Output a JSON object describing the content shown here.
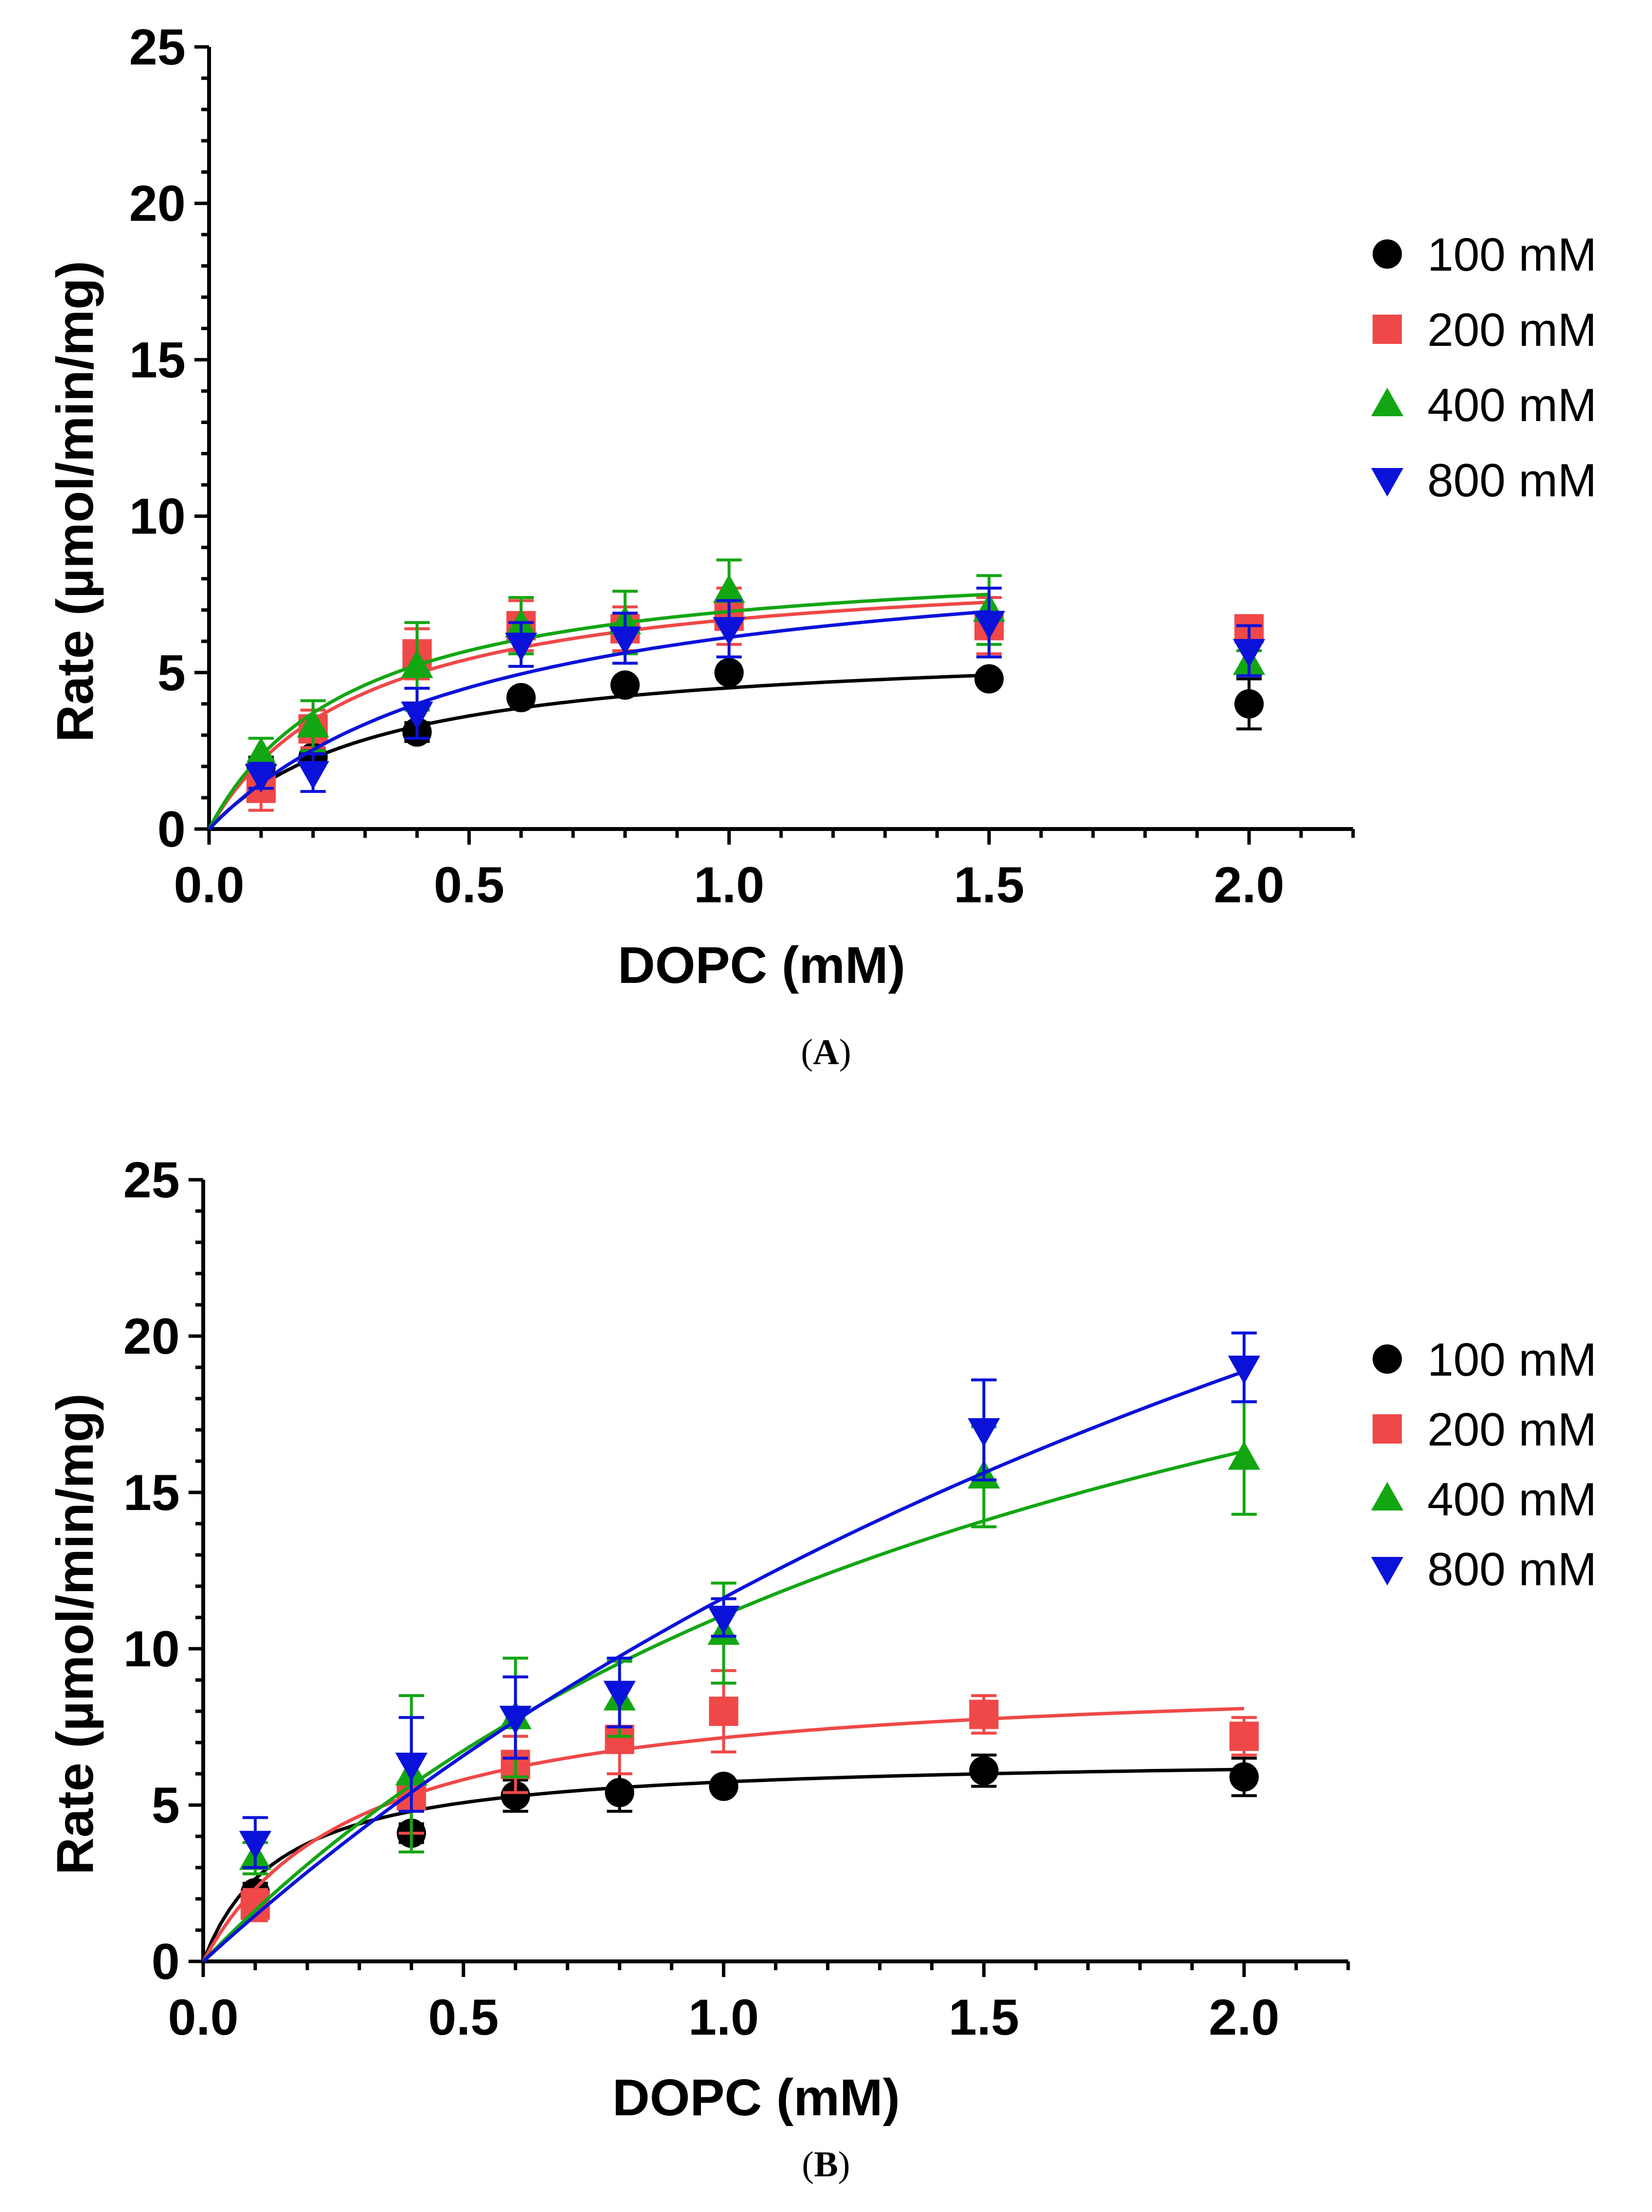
{
  "chart_data": [
    {
      "type": "scatter",
      "panel_label": "A",
      "xlabel": "DOPC (mM)",
      "ylabel": "Rate (µmol/min/mg)",
      "xlim": [
        0,
        2.2
      ],
      "ylim": [
        0,
        25
      ],
      "xticks": [
        "0.0",
        "0.5",
        "1.0",
        "1.5",
        "2.0"
      ],
      "yticks": [
        "0",
        "5",
        "10",
        "15",
        "20",
        "25"
      ],
      "legend_position": "right",
      "series": [
        {
          "name": "100 mM",
          "marker": "circle",
          "color": "#000000",
          "x": [
            0.1,
            0.2,
            0.4,
            0.6,
            0.8,
            1.0,
            1.5,
            2.0
          ],
          "y": [
            2.0,
            2.3,
            3.1,
            4.2,
            4.6,
            5.0,
            4.8,
            4.0
          ],
          "err": [
            0.3,
            0.2,
            0.3,
            0.2,
            0.2,
            0.2,
            0.2,
            0.8
          ],
          "fit": {
            "vmax": 6.0,
            "km": 0.33,
            "range": [
              0,
              1.5
            ]
          }
        },
        {
          "name": "200 mM",
          "marker": "square",
          "color": "#f04848",
          "x": [
            0.1,
            0.2,
            0.4,
            0.6,
            0.8,
            1.0,
            1.5,
            2.0
          ],
          "y": [
            1.3,
            3.2,
            5.6,
            6.5,
            6.4,
            6.8,
            6.5,
            6.4
          ],
          "err": [
            0.7,
            0.6,
            0.8,
            0.8,
            0.7,
            0.9,
            0.9,
            0.3
          ],
          "fit": {
            "vmax": 8.7,
            "km": 0.3,
            "range": [
              0,
              1.5
            ]
          }
        },
        {
          "name": "400 mM",
          "marker": "triangle-up",
          "color": "#13a613",
          "x": [
            0.1,
            0.2,
            0.4,
            0.6,
            0.8,
            1.0,
            1.5,
            2.0
          ],
          "y": [
            2.4,
            3.3,
            5.2,
            6.5,
            6.6,
            7.6,
            7.0,
            5.3
          ],
          "err": [
            0.5,
            0.8,
            1.4,
            0.9,
            1.0,
            1.0,
            1.1,
            0.4
          ],
          "fit": {
            "vmax": 8.9,
            "km": 0.28,
            "range": [
              0,
              1.5
            ]
          }
        },
        {
          "name": "800 mM",
          "marker": "triangle-down",
          "color": "#0a12d9",
          "x": [
            0.1,
            0.2,
            0.4,
            0.6,
            0.8,
            1.0,
            1.5,
            2.0
          ],
          "y": [
            1.7,
            1.8,
            3.7,
            5.9,
            6.1,
            6.4,
            6.6,
            5.7
          ],
          "err": [
            0.4,
            0.6,
            0.8,
            0.7,
            0.8,
            0.9,
            1.1,
            0.8
          ],
          "fit": {
            "vmax": 9.5,
            "km": 0.55,
            "range": [
              0,
              1.5
            ]
          }
        }
      ]
    },
    {
      "type": "scatter",
      "panel_label": "B",
      "xlabel": "DOPC (mM)",
      "ylabel": "Rate (µmol/min/mg)",
      "xlim": [
        0,
        2.2
      ],
      "ylim": [
        0,
        25
      ],
      "xticks": [
        "0.0",
        "0.5",
        "1.0",
        "1.5",
        "2.0"
      ],
      "yticks": [
        "0",
        "5",
        "10",
        "15",
        "20",
        "25"
      ],
      "legend_position": "right",
      "series": [
        {
          "name": "100 mM",
          "marker": "circle",
          "color": "#000000",
          "x": [
            0.1,
            0.4,
            0.6,
            0.8,
            1.0,
            1.5,
            2.0
          ],
          "y": [
            2.2,
            4.1,
            5.3,
            5.4,
            5.6,
            6.1,
            5.9
          ],
          "err": [
            0.3,
            0.3,
            0.5,
            0.6,
            0.2,
            0.5,
            0.6
          ],
          "fit": {
            "vmax": 6.6,
            "km": 0.15,
            "range": [
              0,
              2.0
            ]
          }
        },
        {
          "name": "200 mM",
          "marker": "square",
          "color": "#f04848",
          "x": [
            0.1,
            0.4,
            0.6,
            0.8,
            1.0,
            1.5,
            2.0
          ],
          "y": [
            1.8,
            5.3,
            6.3,
            7.1,
            8.0,
            7.9,
            7.2
          ],
          "err": [
            0.5,
            1.2,
            0.9,
            1.1,
            1.3,
            0.6,
            0.6
          ],
          "fit": {
            "vmax": 9.3,
            "km": 0.3,
            "range": [
              0,
              2.0
            ]
          }
        },
        {
          "name": "400 mM",
          "marker": "triangle-up",
          "color": "#13a613",
          "x": [
            0.1,
            0.4,
            0.6,
            0.8,
            1.0,
            1.5,
            2.0
          ],
          "y": [
            3.3,
            6.0,
            7.8,
            8.4,
            10.5,
            15.5,
            16.1
          ],
          "err": [
            0.5,
            2.5,
            1.9,
            1.2,
            1.6,
            1.6,
            1.8
          ],
          "fit": {
            "vmax": 31.0,
            "km": 1.8,
            "range": [
              0,
              2.0
            ]
          }
        },
        {
          "name": "800 mM",
          "marker": "triangle-down",
          "color": "#0a12d9",
          "x": [
            0.1,
            0.4,
            0.6,
            0.8,
            1.0,
            1.5,
            2.0
          ],
          "y": [
            3.8,
            6.3,
            7.8,
            8.6,
            11.0,
            17.0,
            19.0
          ],
          "err": [
            0.8,
            1.5,
            1.3,
            1.1,
            0.6,
            1.6,
            1.1
          ],
          "fit": {
            "vmax": 50.0,
            "km": 3.3,
            "range": [
              0,
              2.0
            ]
          }
        }
      ]
    }
  ]
}
